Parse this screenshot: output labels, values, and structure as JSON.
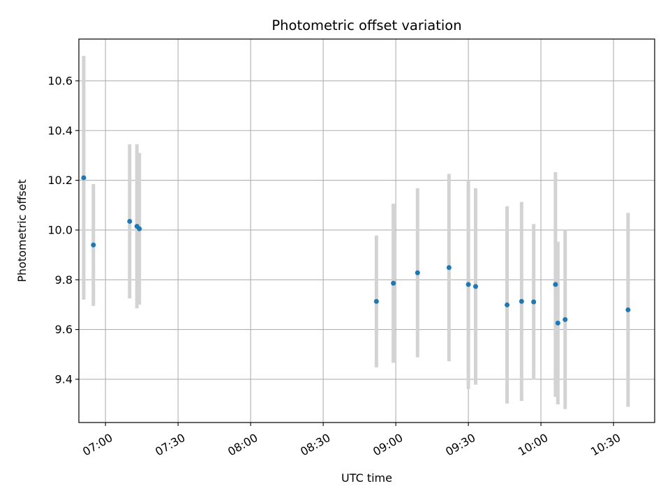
{
  "chart_data": {
    "type": "scatter",
    "title": "Photometric offset variation",
    "xlabel": "UTC time",
    "ylabel": "Photometric offset",
    "xlim": [
      "06:49",
      "10:47"
    ],
    "ylim": [
      9.226,
      10.768
    ],
    "grid": true,
    "x_ticks": [
      "07:00",
      "07:30",
      "08:00",
      "08:30",
      "09:00",
      "09:30",
      "10:00",
      "10:30"
    ],
    "y_ticks": [
      9.4,
      9.6,
      9.8,
      10.0,
      10.2,
      10.4,
      10.6
    ],
    "y_tick_labels": [
      "9.4",
      "9.6",
      "9.8",
      "10.0",
      "10.2",
      "10.4",
      "10.6"
    ],
    "point_color": "#1f77b4",
    "errorbar_color": "#d3d3d3",
    "series": [
      {
        "points": [
          {
            "x": "06:51",
            "y": 10.21,
            "err": 0.49
          },
          {
            "x": "06:55",
            "y": 9.94,
            "err": 0.245
          },
          {
            "x": "07:10",
            "y": 10.035,
            "err": 0.31
          },
          {
            "x": "07:13",
            "y": 10.015,
            "err": 0.33
          },
          {
            "x": "07:14",
            "y": 10.005,
            "err": 0.305
          },
          {
            "x": "08:52",
            "y": 9.713,
            "err": 0.265
          },
          {
            "x": "08:59",
            "y": 9.786,
            "err": 0.32
          },
          {
            "x": "09:09",
            "y": 9.828,
            "err": 0.34
          },
          {
            "x": "09:22",
            "y": 9.849,
            "err": 0.377
          },
          {
            "x": "09:30",
            "y": 9.781,
            "err": 0.42
          },
          {
            "x": "09:33",
            "y": 9.773,
            "err": 0.395
          },
          {
            "x": "09:46",
            "y": 9.699,
            "err": 0.397
          },
          {
            "x": "09:52",
            "y": 9.713,
            "err": 0.4
          },
          {
            "x": "09:57",
            "y": 9.711,
            "err": 0.313
          },
          {
            "x": "10:06",
            "y": 9.781,
            "err": 0.452
          },
          {
            "x": "10:07",
            "y": 9.626,
            "err": 0.327
          },
          {
            "x": "10:10",
            "y": 9.64,
            "err": 0.36
          },
          {
            "x": "10:36",
            "y": 9.679,
            "err": 0.39
          }
        ]
      }
    ]
  }
}
